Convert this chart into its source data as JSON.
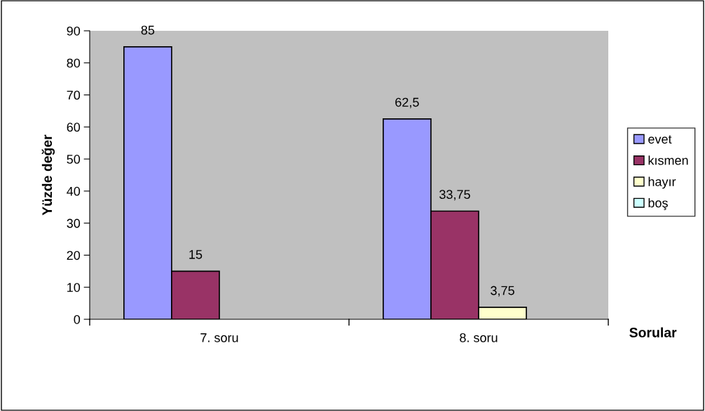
{
  "chart_data": {
    "type": "bar",
    "xlabel": "Sorular",
    "ylabel": "Yüzde değer",
    "categories": [
      "7. soru",
      "8. soru"
    ],
    "series": [
      {
        "name": "evet",
        "color": "#9999ff",
        "values": [
          85,
          62.5
        ],
        "value_labels": [
          "85",
          "62,5"
        ]
      },
      {
        "name": "kısmen",
        "color": "#993366",
        "values": [
          15,
          33.75
        ],
        "value_labels": [
          "15",
          "33,75"
        ]
      },
      {
        "name": "hayır",
        "color": "#ffffcc",
        "values": [
          null,
          3.75
        ],
        "value_labels": [
          null,
          "3,75"
        ]
      },
      {
        "name": "boş",
        "color": "#ccffff",
        "values": [
          null,
          null
        ],
        "value_labels": [
          null,
          null
        ]
      }
    ],
    "ylim": [
      0,
      90
    ],
    "yticks": [
      0,
      10,
      20,
      30,
      40,
      50,
      60,
      70,
      80,
      90
    ],
    "grid": false,
    "legend": "right"
  }
}
